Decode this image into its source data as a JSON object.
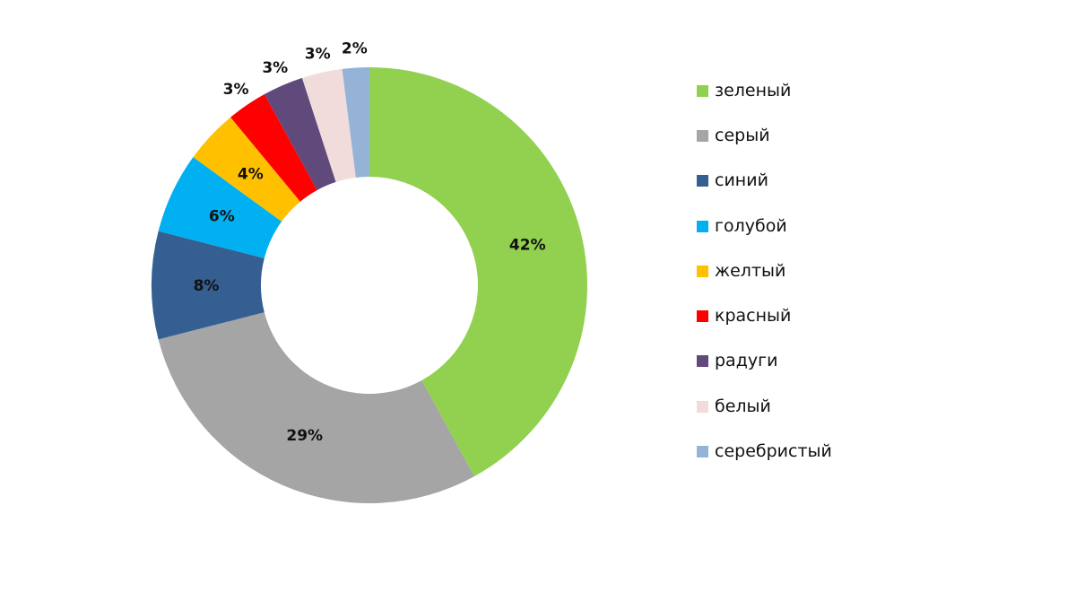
{
  "chart_data": {
    "type": "pie",
    "variant": "donut",
    "title": "",
    "categories": [
      "зеленый",
      "серый",
      "синий",
      "голубой",
      "желтый",
      "красный",
      "радуги",
      "белый",
      "серебристый"
    ],
    "values": [
      42,
      29,
      8,
      6,
      4,
      3,
      3,
      3,
      2
    ],
    "labels": [
      "42%",
      "29%",
      "8%",
      "6%",
      "4%",
      "3%",
      "3%",
      "3%",
      "2%"
    ],
    "colors": [
      "#92d050",
      "#a5a5a5",
      "#355e91",
      "#00b0f0",
      "#ffc000",
      "#ff0000",
      "#604a7b",
      "#f2dcdb",
      "#95b3d7"
    ],
    "unit": "%",
    "start_angle": "12 o'clock",
    "direction": "clockwise",
    "legend_position": "right"
  },
  "legend": {
    "items": [
      {
        "label": "зеленый",
        "color": "#92d050"
      },
      {
        "label": "серый",
        "color": "#a5a5a5"
      },
      {
        "label": "синий",
        "color": "#355e91"
      },
      {
        "label": "голубой",
        "color": "#00b0f0"
      },
      {
        "label": "желтый",
        "color": "#ffc000"
      },
      {
        "label": "красный",
        "color": "#ff0000"
      },
      {
        "label": "радуги",
        "color": "#604a7b"
      },
      {
        "label": "белый",
        "color": "#f2dcdb"
      },
      {
        "label": "серебристый",
        "color": "#95b3d7"
      }
    ]
  }
}
